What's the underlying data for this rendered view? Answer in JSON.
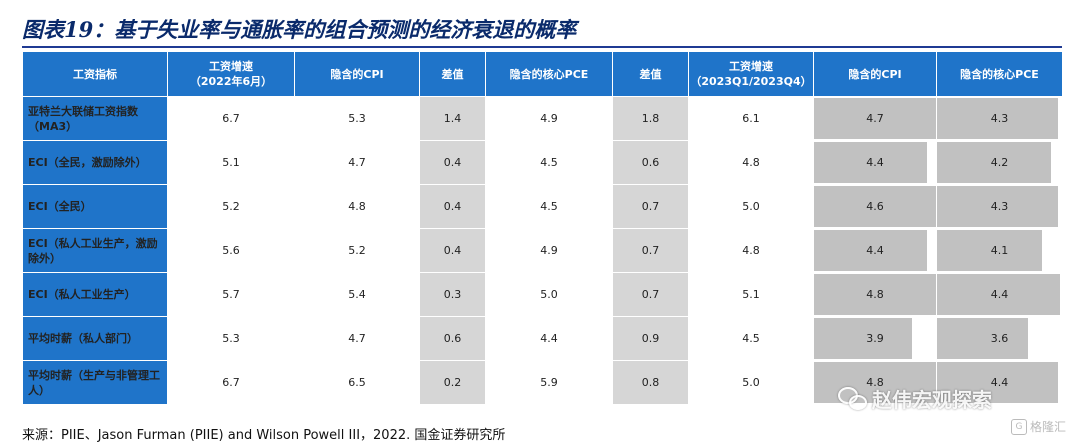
{
  "title": "图表19：基于失业率与通胀率的组合预测的经济衰退的概率",
  "headers": [
    "工资指标",
    "工资增速\n（2022年6月）",
    "隐含的CPI",
    "差值",
    "隐含的核心PCE",
    "差值",
    "工资增速\n（2023Q1/2023Q4）",
    "隐含的CPI",
    "隐含的核心PCE"
  ],
  "rows": [
    {
      "label": "亚特兰大联储工资指数（MA3）",
      "cells": [
        "6.7",
        "5.3",
        "1.4",
        "4.9",
        "1.8",
        "6.1",
        "4.7",
        "4.3"
      ]
    },
    {
      "label": "ECI（全民，激励除外）",
      "cells": [
        "5.1",
        "4.7",
        "0.4",
        "4.5",
        "0.6",
        "4.8",
        "4.4",
        "4.2"
      ]
    },
    {
      "label": "ECI（全民）",
      "cells": [
        "5.2",
        "4.8",
        "0.4",
        "4.5",
        "0.7",
        "5.0",
        "4.6",
        "4.3"
      ]
    },
    {
      "label": "ECI（私人工业生产，激励除外）",
      "cells": [
        "5.6",
        "5.2",
        "0.4",
        "4.9",
        "0.7",
        "4.8",
        "4.4",
        "4.1"
      ]
    },
    {
      "label": "ECI（私人工业生产）",
      "cells": [
        "5.7",
        "5.4",
        "0.3",
        "5.0",
        "0.7",
        "5.1",
        "4.8",
        "4.4"
      ]
    },
    {
      "label": "平均时薪（私人部门）",
      "cells": [
        "5.3",
        "4.7",
        "0.6",
        "4.4",
        "0.9",
        "4.5",
        "3.9",
        "3.6"
      ]
    },
    {
      "label": "平均时薪（生产与非管理工人）",
      "cells": [
        "6.7",
        "6.5",
        "0.2",
        "5.9",
        "0.8",
        "5.0",
        "4.8",
        "4.4"
      ]
    }
  ],
  "source": "来源：PIIE、Jason Furman (PIIE) and Wilson Powell III，2022. 国金证券研究所",
  "watermark": {
    "text": "赵伟宏观探索",
    "icon": "wechat-icon"
  },
  "corner_mark": {
    "text": "格隆汇",
    "icon": "gelonghui-logo-icon"
  }
}
